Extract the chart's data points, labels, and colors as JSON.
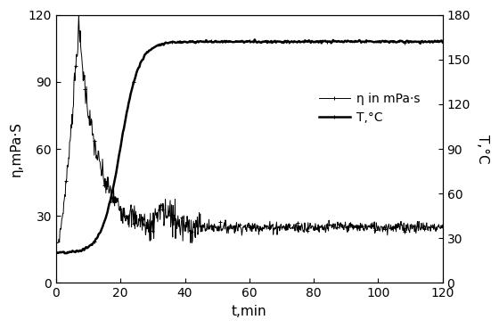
{
  "left_ylabel": "η,mPa·S",
  "right_ylabel": "T,°C",
  "xlabel": "t,min",
  "left_ylim": [
    0,
    120
  ],
  "right_ylim": [
    0,
    180
  ],
  "xlim": [
    0,
    120
  ],
  "left_yticks": [
    0,
    30,
    60,
    90,
    120
  ],
  "right_yticks": [
    0,
    30,
    60,
    90,
    120,
    150,
    180
  ],
  "xticks": [
    0,
    20,
    40,
    60,
    80,
    100,
    120
  ],
  "legend_eta": "η in mPa·s",
  "legend_T": "T,°C",
  "line_color": "#000000",
  "bg_color": "#ffffff"
}
